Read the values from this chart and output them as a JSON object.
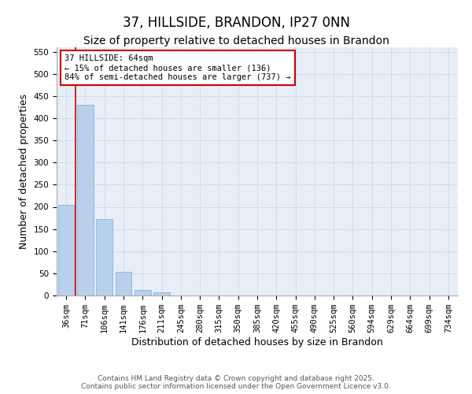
{
  "title": "37, HILLSIDE, BRANDON, IP27 0NN",
  "subtitle": "Size of property relative to detached houses in Brandon",
  "xlabel": "Distribution of detached houses by size in Brandon",
  "ylabel": "Number of detached properties",
  "categories": [
    "36sqm",
    "71sqm",
    "106sqm",
    "141sqm",
    "176sqm",
    "211sqm",
    "245sqm",
    "280sqm",
    "315sqm",
    "350sqm",
    "385sqm",
    "420sqm",
    "455sqm",
    "490sqm",
    "525sqm",
    "560sqm",
    "594sqm",
    "629sqm",
    "664sqm",
    "699sqm",
    "734sqm"
  ],
  "values": [
    205,
    430,
    172,
    53,
    12,
    7,
    0,
    0,
    0,
    0,
    0,
    0,
    0,
    0,
    0,
    0,
    0,
    0,
    0,
    0,
    0
  ],
  "bar_color": "#b8d0ea",
  "bar_edge_color": "#7aadd4",
  "grid_color": "#ccd8e8",
  "background_color": "#e8eef8",
  "annotation_text": "37 HILLSIDE: 64sqm\n← 15% of detached houses are smaller (136)\n84% of semi-detached houses are larger (737) →",
  "annotation_box_color": "#cc0000",
  "vline_x": 0.47,
  "vline_color": "#cc0000",
  "ylim": [
    0,
    560
  ],
  "yticks": [
    0,
    50,
    100,
    150,
    200,
    250,
    300,
    350,
    400,
    450,
    500,
    550
  ],
  "footer_text": "Contains HM Land Registry data © Crown copyright and database right 2025.\nContains public sector information licensed under the Open Government Licence v3.0.",
  "title_fontsize": 12,
  "subtitle_fontsize": 10,
  "axis_label_fontsize": 9,
  "tick_fontsize": 7.5,
  "footer_fontsize": 6.5,
  "annotation_fontsize": 7.5
}
